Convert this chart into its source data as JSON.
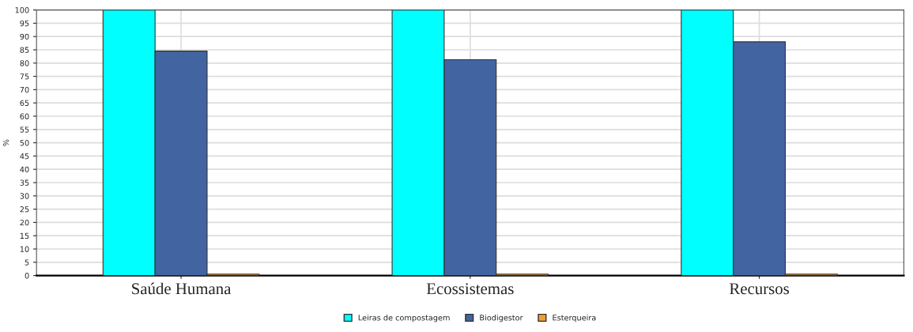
{
  "chart_data": {
    "type": "bar",
    "ylabel": "%",
    "categories": [
      "Saúde Humana",
      "Ecossistemas",
      "Recursos"
    ],
    "series": [
      {
        "name": "Leiras de compostagem",
        "color": "#00ffff",
        "values": [
          100,
          100,
          100
        ]
      },
      {
        "name": "Biodigestor",
        "color": "#4264a0",
        "values": [
          84.5,
          81.3,
          88
        ]
      },
      {
        "name": "Esterqueira",
        "color": "#f0a030",
        "values": [
          0.5,
          0.5,
          0.5
        ]
      }
    ],
    "ylim": [
      0,
      100
    ],
    "yticks": [
      0,
      5,
      10,
      15,
      20,
      25,
      30,
      35,
      40,
      45,
      50,
      55,
      60,
      65,
      70,
      75,
      80,
      85,
      90,
      95,
      100
    ],
    "grid": true,
    "legend": "bottom"
  }
}
